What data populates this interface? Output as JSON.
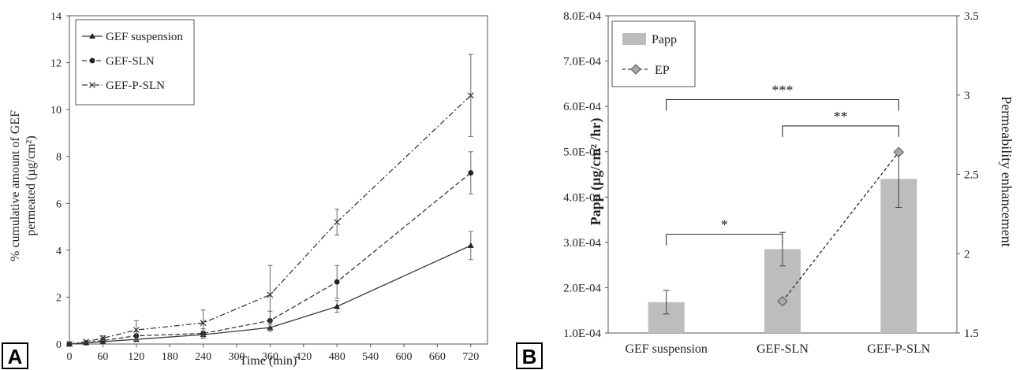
{
  "panel_labels": {
    "a": "A",
    "b": "B"
  },
  "colors": {
    "line": "#3a3a3a",
    "bar": "#bdbdbd",
    "marker_ep": "#a8a8a8",
    "axis": "#555555"
  },
  "chart_data": [
    {
      "type": "line",
      "panel": "A",
      "xlabel": "Time (min)",
      "ylabel_lines": [
        "% cumulative amount of GEF",
        "permeated (µg/cm²)"
      ],
      "xlim": [
        0,
        750
      ],
      "ylim": [
        0,
        14
      ],
      "xticks": [
        0,
        60,
        120,
        180,
        240,
        300,
        360,
        420,
        480,
        540,
        600,
        660,
        720
      ],
      "yticks": [
        0,
        2,
        4,
        6,
        8,
        10,
        12,
        14
      ],
      "grid": false,
      "legend": "top-left",
      "series": [
        {
          "name": "GEF suspension",
          "marker": "triangle",
          "dash": "none",
          "x": [
            0,
            30,
            60,
            120,
            240,
            360,
            480,
            720
          ],
          "y": [
            0,
            0.05,
            0.1,
            0.2,
            0.4,
            0.7,
            1.6,
            4.2
          ],
          "err": [
            0,
            0.03,
            0.05,
            0.1,
            0.15,
            0.15,
            0.25,
            0.6
          ]
        },
        {
          "name": "GEF-SLN",
          "marker": "circle",
          "dash": "dash",
          "x": [
            0,
            30,
            60,
            120,
            240,
            360,
            480,
            720
          ],
          "y": [
            0,
            0.05,
            0.15,
            0.35,
            0.45,
            1.0,
            2.65,
            7.3
          ],
          "err": [
            0,
            0.05,
            0.1,
            0.2,
            0.2,
            0.4,
            0.7,
            0.9
          ]
        },
        {
          "name": "GEF-P-SLN",
          "marker": "x",
          "dash": "dashdot",
          "x": [
            0,
            30,
            60,
            120,
            240,
            360,
            480,
            720
          ],
          "y": [
            0,
            0.1,
            0.25,
            0.6,
            0.9,
            2.1,
            5.2,
            10.6
          ],
          "err": [
            0,
            0.05,
            0.1,
            0.4,
            0.55,
            1.25,
            0.55,
            1.75
          ]
        }
      ]
    },
    {
      "type": "bar",
      "panel": "B",
      "categories": [
        "GEF suspension",
        "GEF-SLN",
        "GEF-P-SLN"
      ],
      "ylabel": "Papp (µg/cm² /hr)",
      "y2label": "Permeability enhancement",
      "ylim": [
        0.0001,
        0.0008
      ],
      "y2lim": [
        1.5,
        3.5
      ],
      "yticks": [
        "1.0E-04",
        "2.0E-04",
        "3.0E-04",
        "4.0E-04",
        "5.0E-04",
        "6.0E-04",
        "7.0E-04",
        "8.0E-04"
      ],
      "y2ticks": [
        "1.5",
        "2",
        "2.5",
        "3",
        "3.5"
      ],
      "grid": false,
      "legend": "top-left",
      "series": [
        {
          "name": "Papp",
          "axis": "left",
          "values": [
            0.000168,
            0.000285,
            0.00044
          ],
          "err": [
            2.6e-05,
            3.7e-05,
            6.3e-05
          ]
        },
        {
          "name": "EP",
          "axis": "right",
          "type": "line",
          "values": [
            null,
            1.7,
            2.64
          ]
        }
      ],
      "annotations": [
        {
          "label": "*",
          "from": 0,
          "to": 1,
          "level": 0.000318
        },
        {
          "label": "**",
          "from": 1,
          "to": 2,
          "level": 0.000557
        },
        {
          "label": "***",
          "from": 0,
          "to": 2,
          "level": 0.000615
        }
      ]
    }
  ]
}
